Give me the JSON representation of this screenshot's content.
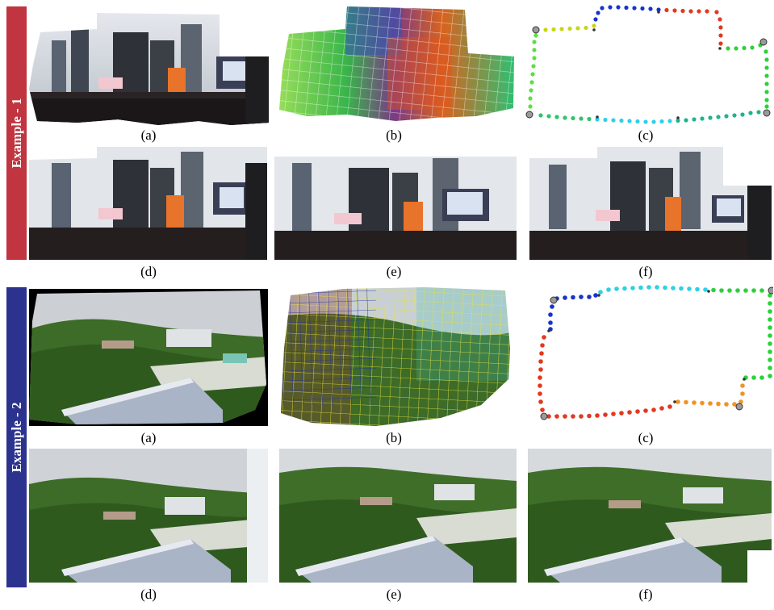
{
  "figure": {
    "examples": [
      {
        "label": "Example - 1",
        "band_color": "#c0353f",
        "captions": [
          "(a)",
          "(b)",
          "(c)",
          "(d)",
          "(e)",
          "(f)"
        ]
      },
      {
        "label": "Example - 2",
        "band_color": "#2c338f",
        "captions": [
          "(a)",
          "(b)",
          "(c)",
          "(d)",
          "(e)",
          "(f)"
        ]
      }
    ]
  }
}
